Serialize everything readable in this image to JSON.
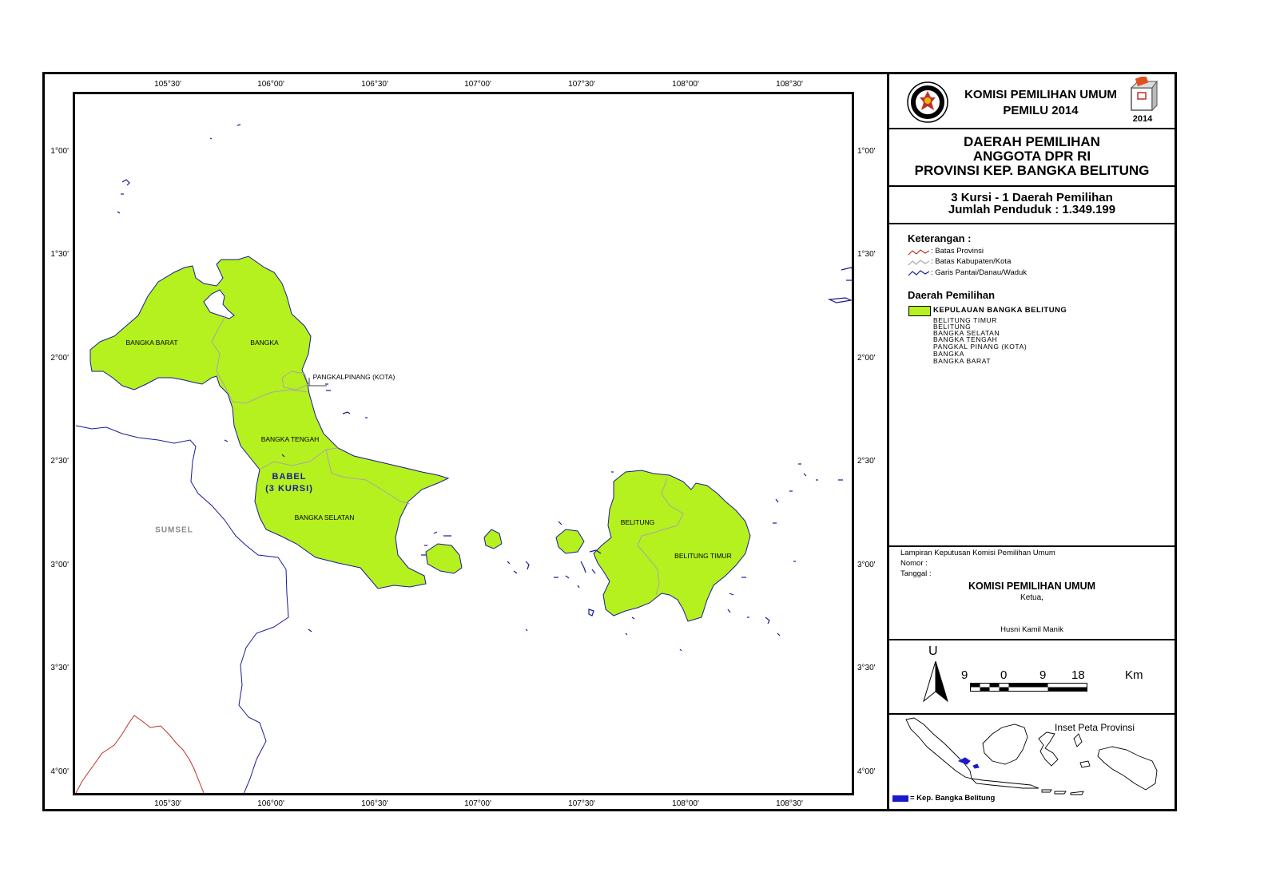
{
  "header": {
    "agency": "KOMISI PEMILIHAN UMUM",
    "election": "PEMILU 2014",
    "badge_year": "2014"
  },
  "title": {
    "line1": "DAERAH PEMILIHAN",
    "line2": "ANGGOTA DPR RI",
    "line3": "PROVINSI KEP. BANGKA BELITUNG"
  },
  "summary": {
    "seats": "3 Kursi - 1 Daerah Pemilihan",
    "population": "Jumlah Penduduk : 1.349.199"
  },
  "legend": {
    "heading": "Keterangan :",
    "items": [
      {
        "label": ": Batas Provinsi",
        "color": "#c0302a"
      },
      {
        "label": ": Batas Kabupaten/Kota",
        "color": "#a8a8a8"
      },
      {
        "label": ": Garis Pantai/Danau/Waduk",
        "color": "#1a1a9a"
      }
    ],
    "dapil_heading": "Daerah Pemilihan",
    "dapil_name": "KEPULAUAN BANGKA BELITUNG",
    "dapil_color": "#b5f01f",
    "kabupaten": [
      "BELITUNG TIMUR",
      "BELITUNG",
      "BANGKA SELATAN",
      "BANGKA TENGAH",
      "PANGKAL PINANG (KOTA)",
      "BANGKA",
      "BANGKA BARAT"
    ]
  },
  "signature": {
    "lampiran": "Lampiran Keputusan Komisi Pemilihan Umum",
    "nomor": "Nomor    :",
    "tanggal": "Tanggal :",
    "org": "KOMISI PEMILIHAN UMUM",
    "role": "Ketua,",
    "name": "Husni Kamil Manik"
  },
  "scale": {
    "north": "U",
    "ticks": [
      "9",
      "0",
      "9",
      "18"
    ],
    "unit": "Km"
  },
  "inset": {
    "title": "Inset Peta Provinsi",
    "legend": "= Kep. Bangka Belitung",
    "highlight_color": "#1a1acc"
  },
  "axes": {
    "longitudes": [
      "105°30'",
      "106°00'",
      "106°30'",
      "107°00'",
      "107°30'",
      "108°00'",
      "108°30'"
    ],
    "latitudes": [
      "1°00'",
      "1°30'",
      "2°00'",
      "2°30'",
      "3°00'",
      "3°30'",
      "4°00'"
    ]
  },
  "map_labels": {
    "bangka_barat": "BANGKA BARAT",
    "bangka": "BANGKA",
    "pangkalpinang": "PANGKALPINANG (KOTA)",
    "bangka_tengah": "BANGKA TENGAH",
    "babel": "BABEL",
    "babel_seats": "(3 KURSI)",
    "bangka_selatan": "BANGKA SELATAN",
    "belitung": "BELITUNG",
    "belitung_timur": "BELITUNG TIMUR",
    "sumsel": "SUMSEL"
  },
  "colors": {
    "land": "#b5f01f",
    "coast": "#1a1a9a",
    "kab_border": "#a8a8a8",
    "prov_border": "#c0302a"
  }
}
